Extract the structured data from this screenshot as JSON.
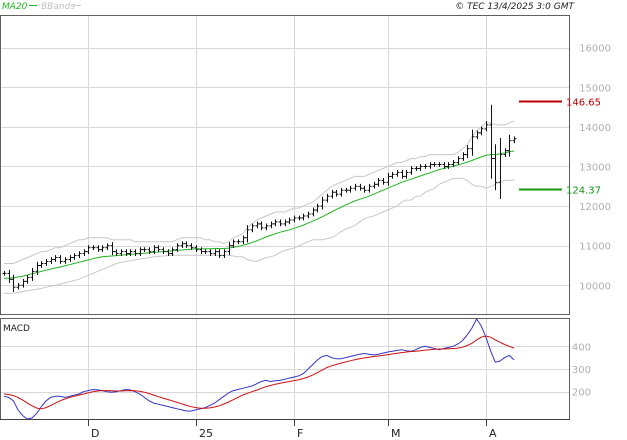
{
  "header": {
    "ma_label": "MA20",
    "bb_label": "BBands",
    "copyright": "© TEC 13/4/2025 3:0 GMT"
  },
  "colors": {
    "ma": "#22b422",
    "bbands": "#c8c8c8",
    "candle": "#111111",
    "macd_line": "#3535c8",
    "signal_line": "#cc1111",
    "resistance": "#bb0000",
    "support": "#119911",
    "grid": "#d8d8d8",
    "axis_text": "#b0b0b0"
  },
  "chart_data": [
    {
      "type": "ohlc",
      "name": "price",
      "ylim": [
        9300,
        16800
      ],
      "y_ticks": [
        {
          "value": 10000,
          "label": "10000"
        },
        {
          "value": 11000,
          "label": "11000"
        },
        {
          "value": 12000,
          "label": "12000"
        },
        {
          "value": 13000,
          "label": "13000"
        },
        {
          "value": 14000,
          "label": "14000"
        },
        {
          "value": 15000,
          "label": "15000"
        },
        {
          "value": 16000,
          "label": "16000"
        }
      ],
      "x_ticks": [
        {
          "index": 18,
          "label": "D"
        },
        {
          "index": 41,
          "label": "25"
        },
        {
          "index": 62,
          "label": "F"
        },
        {
          "index": 82,
          "label": "M"
        },
        {
          "index": 103,
          "label": "A"
        }
      ],
      "levels": [
        {
          "value": 14665,
          "label": "146.65",
          "role": "resistance"
        },
        {
          "value": 12437,
          "label": "124.37",
          "role": "support"
        }
      ],
      "closes": [
        10300,
        10150,
        9950,
        10000,
        10100,
        10200,
        10350,
        10500,
        10550,
        10600,
        10650,
        10700,
        10600,
        10650,
        10700,
        10750,
        10800,
        10850,
        10950,
        10950,
        10900,
        10950,
        11000,
        10850,
        10800,
        10850,
        10800,
        10850,
        10800,
        10900,
        10900,
        10850,
        10950,
        10900,
        10850,
        10800,
        10900,
        11000,
        11050,
        11000,
        10950,
        10900,
        10850,
        10850,
        10800,
        10850,
        10750,
        10850,
        11000,
        11100,
        11100,
        11200,
        11400,
        11500,
        11550,
        11450,
        11500,
        11550,
        11600,
        11550,
        11600,
        11650,
        11700,
        11700,
        11750,
        11800,
        11900,
        12000,
        12150,
        12250,
        12350,
        12300,
        12400,
        12400,
        12450,
        12500,
        12450,
        12400,
        12500,
        12550,
        12650,
        12600,
        12750,
        12800,
        12850,
        12750,
        12850,
        12950,
        12950,
        13000,
        13000,
        13050,
        13050,
        13050,
        13000,
        13050,
        13100,
        13200,
        13300,
        13450,
        13750,
        13850,
        13950,
        14050,
        13200,
        12600,
        13300,
        13400,
        13650,
        13700
      ],
      "ma20": [
        10180,
        10180,
        10190,
        10210,
        10230,
        10260,
        10290,
        10320,
        10350,
        10380,
        10410,
        10440,
        10460,
        10490,
        10520,
        10550,
        10580,
        10610,
        10640,
        10670,
        10700,
        10720,
        10730,
        10740,
        10750,
        10760,
        10770,
        10780,
        10790,
        10800,
        10810,
        10820,
        10830,
        10840,
        10850,
        10860,
        10870,
        10880,
        10890,
        10900,
        10910,
        10920,
        10920,
        10920,
        10920,
        10930,
        10930,
        10930,
        10940,
        10960,
        10980,
        11010,
        11040,
        11080,
        11120,
        11170,
        11220,
        11260,
        11300,
        11340,
        11370,
        11400,
        11440,
        11480,
        11520,
        11570,
        11620,
        11670,
        11730,
        11790,
        11850,
        11910,
        11970,
        12030,
        12080,
        12130,
        12170,
        12210,
        12250,
        12300,
        12350,
        12400,
        12450,
        12500,
        12550,
        12600,
        12640,
        12680,
        12720,
        12760,
        12800,
        12840,
        12880,
        12920,
        12950,
        12980,
        13010,
        13040,
        13070,
        13110,
        13150,
        13200,
        13240,
        13280,
        13300,
        13300,
        13320,
        13340,
        13370,
        13390
      ],
      "bb_upper": [
        10550,
        10550,
        10550,
        10600,
        10650,
        10700,
        10750,
        10800,
        10850,
        10850,
        10900,
        10950,
        10950,
        11000,
        11050,
        11100,
        11150,
        11150,
        11200,
        11200,
        11200,
        11200,
        11200,
        11150,
        11150,
        11150,
        11150,
        11150,
        11100,
        11100,
        11100,
        11100,
        11100,
        11100,
        11100,
        11100,
        11100,
        11150,
        11200,
        11200,
        11200,
        11200,
        11200,
        11150,
        11150,
        11100,
        11100,
        11050,
        11100,
        11200,
        11250,
        11300,
        11450,
        11550,
        11650,
        11700,
        11750,
        11800,
        11850,
        11850,
        11850,
        11900,
        11950,
        11950,
        12000,
        12050,
        12100,
        12200,
        12300,
        12400,
        12500,
        12550,
        12600,
        12650,
        12700,
        12750,
        12750,
        12750,
        12800,
        12850,
        12900,
        12950,
        13000,
        13050,
        13100,
        13100,
        13150,
        13200,
        13200,
        13250,
        13250,
        13300,
        13300,
        13300,
        13300,
        13300,
        13300,
        13350,
        13450,
        13550,
        13750,
        13900,
        14000,
        14100,
        14100,
        14050,
        14050,
        14050,
        14100,
        14150
      ],
      "bb_lower": [
        9800,
        9800,
        9800,
        9820,
        9840,
        9860,
        9880,
        9900,
        9920,
        9950,
        9980,
        10000,
        10030,
        10060,
        10090,
        10120,
        10150,
        10200,
        10250,
        10300,
        10350,
        10400,
        10450,
        10500,
        10550,
        10580,
        10600,
        10620,
        10640,
        10660,
        10680,
        10700,
        10720,
        10730,
        10740,
        10750,
        10760,
        10760,
        10760,
        10760,
        10760,
        10760,
        10760,
        10760,
        10760,
        10760,
        10760,
        10760,
        10760,
        10740,
        10720,
        10720,
        10650,
        10620,
        10600,
        10650,
        10700,
        10720,
        10760,
        10830,
        10880,
        10910,
        10940,
        11000,
        11050,
        11100,
        11150,
        11150,
        11150,
        11180,
        11200,
        11270,
        11350,
        11420,
        11460,
        11510,
        11600,
        11680,
        11720,
        11750,
        11800,
        11850,
        11900,
        11950,
        12000,
        12100,
        12150,
        12150,
        12250,
        12250,
        12350,
        12400,
        12450,
        12550,
        12600,
        12650,
        12700,
        12700,
        12700,
        12650,
        12550,
        12500,
        12500,
        12450,
        12500,
        12550,
        12600,
        12650,
        12650,
        12650
      ]
    },
    {
      "type": "line",
      "name": "MACD",
      "title": "MACD",
      "ylim": [
        80,
        520
      ],
      "y_ticks": [
        {
          "value": 200,
          "label": "200"
        },
        {
          "value": 300,
          "label": "300"
        },
        {
          "value": 400,
          "label": "400"
        }
      ],
      "series": [
        {
          "role": "macd",
          "values": [
            180,
            175,
            160,
            120,
            95,
            80,
            85,
            105,
            135,
            160,
            175,
            180,
            180,
            175,
            180,
            185,
            190,
            200,
            205,
            210,
            208,
            205,
            200,
            198,
            200,
            205,
            210,
            208,
            200,
            190,
            175,
            160,
            150,
            145,
            140,
            135,
            130,
            125,
            120,
            115,
            115,
            120,
            125,
            130,
            140,
            150,
            165,
            180,
            195,
            205,
            210,
            215,
            220,
            225,
            235,
            245,
            250,
            245,
            248,
            250,
            255,
            260,
            265,
            270,
            280,
            300,
            320,
            340,
            355,
            360,
            350,
            345,
            345,
            350,
            355,
            360,
            365,
            368,
            365,
            362,
            365,
            370,
            375,
            378,
            382,
            385,
            380,
            378,
            385,
            395,
            400,
            395,
            390,
            385,
            390,
            395,
            400,
            410,
            425,
            450,
            480,
            520,
            490,
            440,
            380,
            330,
            335,
            350,
            360,
            340
          ]
        },
        {
          "role": "signal",
          "values": [
            190,
            188,
            183,
            175,
            163,
            150,
            138,
            128,
            125,
            130,
            140,
            150,
            160,
            168,
            175,
            180,
            185,
            190,
            195,
            200,
            203,
            205,
            205,
            204,
            203,
            203,
            204,
            205,
            204,
            202,
            198,
            192,
            185,
            178,
            172,
            166,
            160,
            153,
            147,
            140,
            134,
            130,
            127,
            127,
            129,
            133,
            138,
            146,
            155,
            165,
            175,
            185,
            193,
            200,
            207,
            215,
            222,
            228,
            233,
            237,
            241,
            245,
            249,
            253,
            258,
            265,
            274,
            284,
            295,
            306,
            314,
            320,
            326,
            331,
            336,
            341,
            345,
            349,
            352,
            355,
            357,
            360,
            363,
            366,
            369,
            372,
            375,
            377,
            378,
            380,
            383,
            385,
            387,
            388,
            388,
            389,
            390,
            392,
            396,
            403,
            413,
            428,
            440,
            445,
            440,
            428,
            418,
            408,
            400,
            392
          ]
        }
      ]
    }
  ]
}
